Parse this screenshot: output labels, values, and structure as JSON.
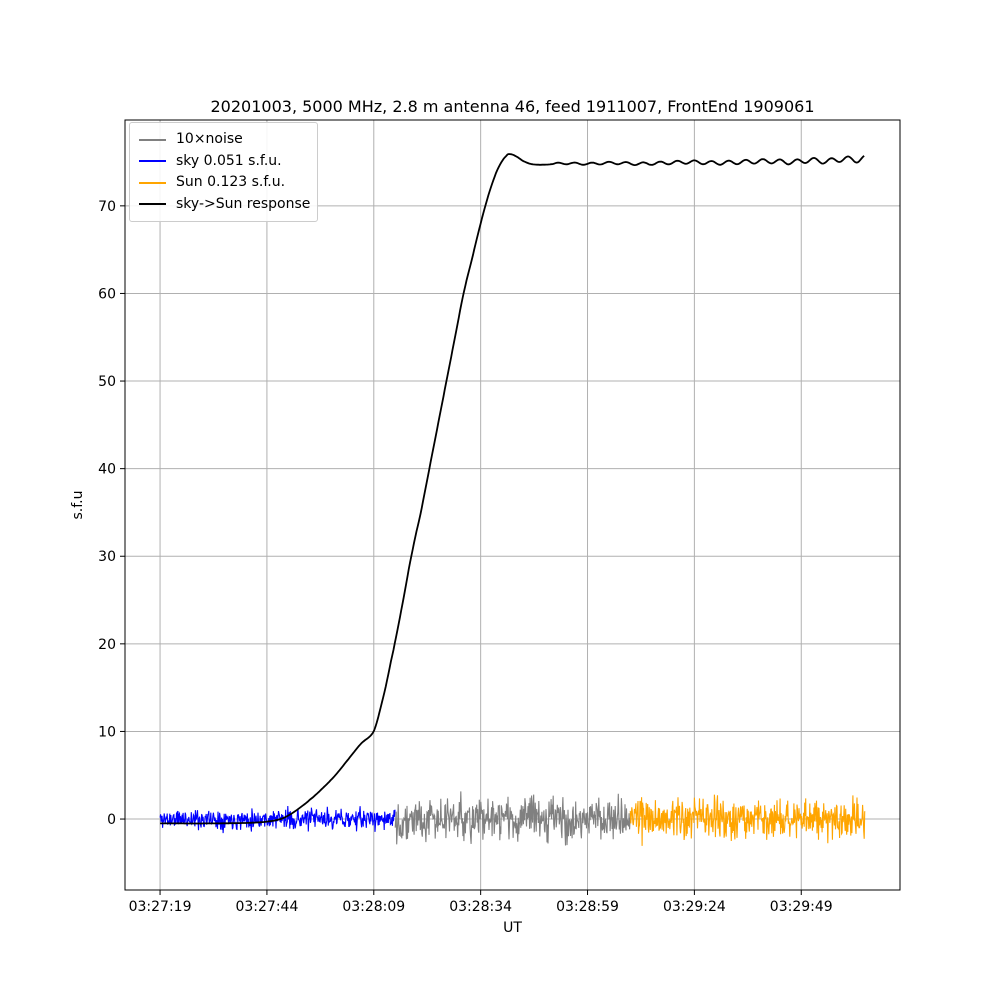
{
  "figure": {
    "title": "20201003, 5000 MHz, 2.8 m antenna 46, feed 1911007, FrontEnd 1909061"
  },
  "chart_data": {
    "type": "line",
    "title": "20201003, 5000 MHz, 2.8 m antenna 46, feed 1911007, FrontEnd 1909061",
    "xlabel": "UT",
    "ylabel": "s.f.u",
    "grid": true,
    "grid_color": "#b0b0b0",
    "axes_color": "#000000",
    "legend_position": "upper left",
    "x_tick_labels": [
      "03:27:19",
      "03:27:44",
      "03:28:09",
      "03:28:34",
      "03:28:59",
      "03:29:24",
      "03:29:49"
    ],
    "x_tick_seconds": [
      0,
      25,
      50,
      75,
      100,
      125,
      150
    ],
    "xlim_seconds": [
      -8.2,
      173.1
    ],
    "y_ticks": [
      0,
      10,
      20,
      30,
      40,
      50,
      60,
      70
    ],
    "ylim": [
      -8.1,
      79.8
    ],
    "legend": [
      {
        "label": "10×noise",
        "color": "#808080"
      },
      {
        "label": "sky 0.051 s.f.u.",
        "color": "#0000ff"
      },
      {
        "label": "Sun 0.123 s.f.u.",
        "color": "#ffa500"
      },
      {
        "label": "sky->Sun response",
        "color": "#000000"
      }
    ],
    "series": [
      {
        "name": "sky-noise-trace",
        "legend_label": "sky 0.051 s.f.u.",
        "color": "#0000ff",
        "kind": "noise",
        "t_range": [
          0,
          55
        ],
        "base": 0,
        "amplitude": 1.7,
        "sample_dt": 0.12,
        "seed": 11
      },
      {
        "name": "ten-x-noise-trace",
        "legend_label": "10×noise",
        "color": "#808080",
        "kind": "noise",
        "t_range": [
          55,
          110
        ],
        "base": 0,
        "amplitude": 3.5,
        "sample_dt": 0.12,
        "seed": 22
      },
      {
        "name": "sun-noise-trace",
        "legend_label": "Sun 0.123 s.f.u.",
        "color": "#ffa500",
        "kind": "noise",
        "t_range": [
          110,
          165
        ],
        "base": 0,
        "amplitude": 3.4,
        "sample_dt": 0.12,
        "seed": 33
      },
      {
        "name": "sky-sun-response-curve",
        "legend_label": "sky->Sun response",
        "color": "#000000",
        "kind": "curve",
        "sample_dt": 0.3,
        "keypoints": [
          [
            0,
            -0.5
          ],
          [
            12,
            -0.5
          ],
          [
            20,
            -0.45
          ],
          [
            24,
            -0.35
          ],
          [
            27,
            -0.15
          ],
          [
            29,
            0.15
          ],
          [
            31,
            0.7
          ],
          [
            33,
            1.4
          ],
          [
            35,
            2.2
          ],
          [
            38,
            3.5
          ],
          [
            41,
            5.0
          ],
          [
            44,
            6.8
          ],
          [
            47,
            8.6
          ],
          [
            50,
            10.0
          ],
          [
            52,
            13.5
          ],
          [
            54,
            18.0
          ],
          [
            56.5,
            24.0
          ],
          [
            59,
            30.5
          ],
          [
            61,
            35.0
          ],
          [
            63,
            40.0
          ],
          [
            65,
            45.0
          ],
          [
            67,
            50.0
          ],
          [
            69,
            55.0
          ],
          [
            71,
            60.0
          ],
          [
            73,
            64.0
          ],
          [
            75,
            68.0
          ],
          [
            77,
            71.5
          ],
          [
            79,
            74.2
          ],
          [
            81,
            75.7
          ],
          [
            82,
            75.9
          ],
          [
            83.5,
            75.6
          ],
          [
            85,
            75.1
          ],
          [
            87,
            74.75
          ],
          [
            90,
            74.7
          ],
          [
            94,
            74.85
          ],
          [
            100,
            74.8
          ],
          [
            106,
            74.9
          ],
          [
            112,
            74.8
          ],
          [
            118,
            74.9
          ],
          [
            124,
            75.0
          ],
          [
            130,
            74.9
          ],
          [
            136,
            75.0
          ],
          [
            142,
            75.1
          ],
          [
            148,
            75.0
          ],
          [
            152,
            75.2
          ],
          [
            156,
            75.1
          ],
          [
            160,
            75.35
          ],
          [
            163,
            75.25
          ],
          [
            165,
            75.45
          ]
        ],
        "wiggle": {
          "start_t": 92,
          "base_amp": 0.1,
          "amp_growth": 0.003,
          "period_s": 4.0
        }
      }
    ]
  }
}
